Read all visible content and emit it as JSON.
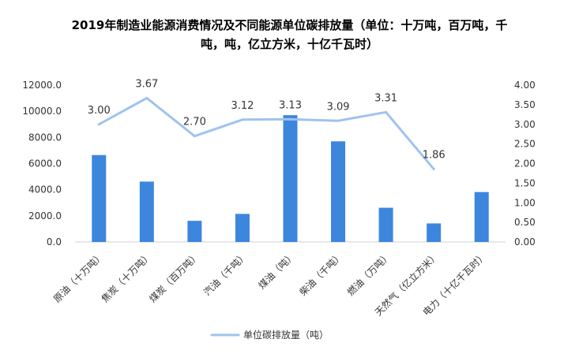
{
  "chart_data": {
    "type": "bar",
    "title": "2019年制造业能源消费情况及不同能源单位碳排放量（单位：十万吨，百万吨，千吨，吨，亿立方米，十亿千瓦时）",
    "title_lines": [
      "2019年制造业能源消费情况及不同能源单位碳排放量（单位：十万吨，百万吨，千",
      "吨，吨，亿立方米，十亿千瓦时）"
    ],
    "categories": [
      "原油（十万吨）",
      "焦炭（十万吨）",
      "煤炭（百万吨）",
      "汽油（千吨）",
      "煤油（吨）",
      "柴油（千吨）",
      "燃油（万吨）",
      "天然气（亿立方米）",
      "电力（十亿千瓦时）"
    ],
    "series": [
      {
        "name": "",
        "axis": "left",
        "kind": "bar",
        "values": [
          6650,
          4620,
          1620,
          2150,
          9700,
          7700,
          2620,
          1420,
          3820
        ],
        "color": "#3d86de"
      },
      {
        "name": "单位碳排放量（吨）",
        "axis": "right",
        "kind": "line",
        "values": [
          3.0,
          3.67,
          2.7,
          3.12,
          3.13,
          3.09,
          3.31,
          1.86,
          null
        ],
        "data_labels": [
          "3.00",
          "3.67",
          "2.70",
          "3.12",
          "3.13",
          "3.09",
          "3.31",
          "1.86",
          ""
        ],
        "color": "#9ec3ef"
      }
    ],
    "y_left": {
      "min": 0,
      "max": 12000,
      "ticks": [
        "0.0",
        "2000.0",
        "4000.0",
        "6000.0",
        "8000.0",
        "10000.0",
        "12000.0"
      ]
    },
    "y_right": {
      "min": 0,
      "max": 4,
      "ticks": [
        "0.00",
        "0.50",
        "1.00",
        "1.50",
        "2.00",
        "2.50",
        "3.00",
        "3.50",
        "4.00"
      ]
    },
    "grid": false,
    "legend_position": "bottom"
  }
}
